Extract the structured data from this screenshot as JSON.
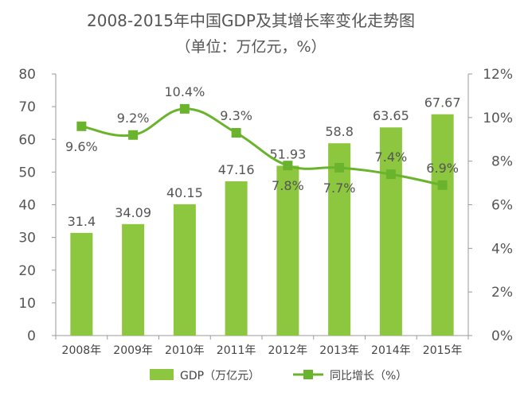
{
  "chart_data": {
    "type": "bar+line",
    "title": "2008-2015年中国GDP及其增长率变化走势图",
    "subtitle": "（单位：万亿元，%）",
    "categories": [
      "2008年",
      "2009年",
      "2010年",
      "2011年",
      "2012年",
      "2013年",
      "2014年",
      "2015年"
    ],
    "series": [
      {
        "name": "GDP（万亿元）",
        "type": "bar",
        "axis": "left",
        "values": [
          31.4,
          34.09,
          40.15,
          47.16,
          51.93,
          58.8,
          63.65,
          67.67
        ],
        "labels": [
          "31.4",
          "34.09",
          "40.15",
          "47.16",
          "51.93",
          "58.8",
          "63.65",
          "67.67"
        ],
        "color": "#8dc63f"
      },
      {
        "name": "同比增长（%）",
        "type": "line",
        "axis": "right",
        "values": [
          9.6,
          9.2,
          10.4,
          9.3,
          7.8,
          7.7,
          7.4,
          6.9
        ],
        "labels": [
          "9.6%",
          "9.2%",
          "10.4%",
          "9.3%",
          "7.8%",
          "7.7%",
          "7.4%",
          "6.9%"
        ],
        "color": "#6ab42d"
      }
    ],
    "y_left": {
      "min": 0,
      "max": 80,
      "step": 10,
      "ticks": [
        "0",
        "10",
        "20",
        "30",
        "40",
        "50",
        "60",
        "70",
        "80"
      ]
    },
    "y_right": {
      "min": 0,
      "max": 12,
      "step": 2,
      "ticks": [
        "0%",
        "2%",
        "4%",
        "6%",
        "8%",
        "10%",
        "12%"
      ]
    },
    "grid": false,
    "legend_position": "bottom"
  }
}
